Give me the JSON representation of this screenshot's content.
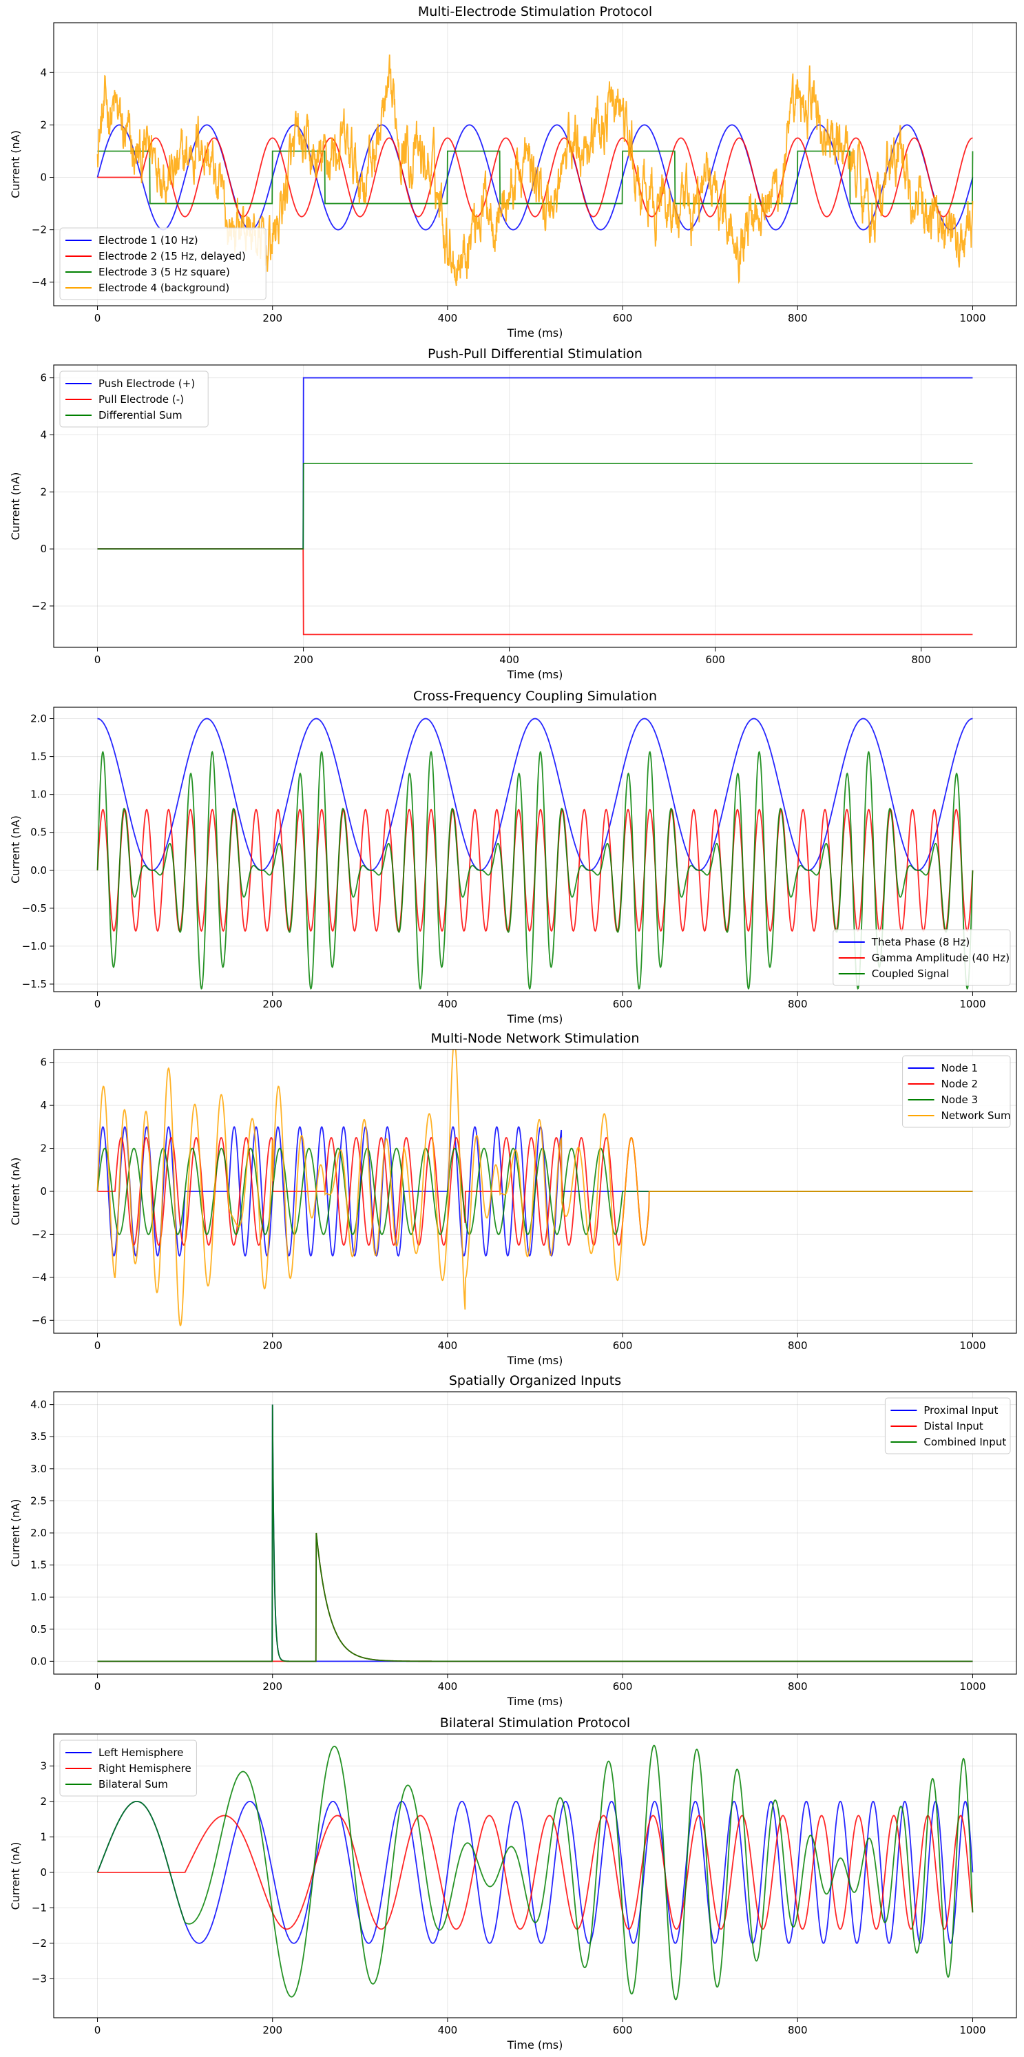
{
  "chart_data": [
    {
      "type": "line",
      "title": "Multi-Electrode Stimulation Protocol",
      "xlabel": "Time (ms)",
      "ylabel": "Current (nA)",
      "xlim": [
        -50,
        1050
      ],
      "ylim": [
        -4.9,
        5.9
      ],
      "xticks": [
        0,
        200,
        400,
        600,
        800,
        1000
      ],
      "yticks": [
        -4,
        -2,
        0,
        2,
        4
      ],
      "grid": true,
      "legend": "lower-left",
      "series": [
        {
          "name": "Electrode 1 (10 Hz)",
          "color": "#0000ff",
          "fn": "sine",
          "amplitude": 2,
          "freq_hz": 10,
          "start": 0,
          "end": 1000
        },
        {
          "name": "Electrode 2 (15 Hz, delayed)",
          "color": "#ff0000",
          "fn": "sine",
          "amplitude": 1.5,
          "freq_hz": 15,
          "start": 50,
          "end": 1000
        },
        {
          "name": "Electrode 3 (5 Hz square)",
          "color": "#008000",
          "fn": "square",
          "amplitude": 1,
          "freq_hz": 5,
          "start": 0,
          "end": 1000
        },
        {
          "name": "Electrode 4 (background)",
          "color": "#ffa500",
          "fn": "noise",
          "amplitude": 1.4,
          "start": 0,
          "end": 1000
        }
      ]
    },
    {
      "type": "line",
      "title": "Push-Pull Differential Stimulation",
      "xlabel": "Time (ms)",
      "ylabel": "Current (nA)",
      "xlim": [
        -42.5,
        892.5
      ],
      "ylim": [
        -3.45,
        6.45
      ],
      "xticks": [
        0,
        200,
        400,
        600,
        800
      ],
      "yticks": [
        -2,
        0,
        2,
        4,
        6
      ],
      "grid": true,
      "legend": "upper-left",
      "series": [
        {
          "name": "Push Electrode (+)",
          "color": "#0000ff",
          "fn": "step",
          "before": 0,
          "after": 6,
          "step_at": 200,
          "start": 0,
          "end": 850
        },
        {
          "name": "Pull Electrode (-)",
          "color": "#ff0000",
          "fn": "step",
          "before": 0,
          "after": -3,
          "step_at": 200,
          "start": 0,
          "end": 850
        },
        {
          "name": "Differential Sum",
          "color": "#008000",
          "fn": "step",
          "before": 0,
          "after": 3,
          "step_at": 200,
          "start": 0,
          "end": 850
        }
      ]
    },
    {
      "type": "line",
      "title": "Cross-Frequency Coupling Simulation",
      "xlabel": "Time (ms)",
      "ylabel": "Current (nA)",
      "xlim": [
        -50,
        1050
      ],
      "ylim": [
        -1.6,
        2.15
      ],
      "xticks": [
        0,
        200,
        400,
        600,
        800,
        1000
      ],
      "yticks": [
        -1.5,
        -1.0,
        -0.5,
        0.0,
        0.5,
        1.0,
        1.5,
        2.0
      ],
      "grid": true,
      "legend": "lower-right",
      "series": [
        {
          "name": "Theta Phase (8 Hz)",
          "color": "#0000ff",
          "fn": "theta",
          "freq_hz": 8
        },
        {
          "name": "Gamma Amplitude (40 Hz)",
          "color": "#ff0000",
          "fn": "gamma",
          "freq_hz": 40,
          "amplitude": 0.8
        },
        {
          "name": "Coupled Signal",
          "color": "#008000",
          "fn": "coupled"
        }
      ]
    },
    {
      "type": "line",
      "title": "Multi-Node Network Stimulation",
      "xlabel": "Time (ms)",
      "ylabel": "Current (nA)",
      "xlim": [
        -50,
        1050
      ],
      "ylim": [
        -6.6,
        6.6
      ],
      "xticks": [
        0,
        200,
        400,
        600,
        800,
        1000
      ],
      "yticks": [
        -6,
        -4,
        -2,
        0,
        2,
        4,
        6
      ],
      "grid": true,
      "legend": "upper-right",
      "series": [
        {
          "name": "Node 1",
          "color": "#0000ff",
          "fn": "burst",
          "amplitude": 3,
          "freq_hz": 40,
          "bursts": [
            [
              0,
              100
            ],
            [
              150,
              350
            ],
            [
              400,
              530
            ]
          ],
          "end": 1000
        },
        {
          "name": "Node 2",
          "color": "#ff0000",
          "fn": "burst",
          "amplitude": 2.5,
          "freq_hz": 35,
          "bursts": [
            [
              20,
              200
            ],
            [
              260,
              420
            ],
            [
              460,
              630
            ]
          ],
          "end": 1000
        },
        {
          "name": "Node 3",
          "color": "#008000",
          "fn": "burst",
          "amplitude": 2,
          "freq_hz": 30,
          "bursts": [
            [
              0,
              600
            ]
          ],
          "end": 1000
        },
        {
          "name": "Network Sum",
          "color": "#ffa500",
          "fn": "sum"
        }
      ]
    },
    {
      "type": "line",
      "title": "Spatially Organized Inputs",
      "xlabel": "Time (ms)",
      "ylabel": "Current (nA)",
      "xlim": [
        -50,
        1050
      ],
      "ylim": [
        -0.2,
        4.2
      ],
      "xticks": [
        0,
        200,
        400,
        600,
        800,
        1000
      ],
      "yticks": [
        0.0,
        0.5,
        1.0,
        1.5,
        2.0,
        2.5,
        3.0,
        3.5,
        4.0
      ],
      "grid": true,
      "legend": "upper-right",
      "series": [
        {
          "name": "Proximal Input",
          "color": "#0000ff",
          "fn": "pulse",
          "onset": 200,
          "amplitude": 4,
          "tau_ms": 2
        },
        {
          "name": "Distal Input",
          "color": "#ff0000",
          "fn": "pulse",
          "onset": 250,
          "amplitude": 2,
          "tau_ms": 15
        },
        {
          "name": "Combined Input",
          "color": "#008000",
          "fn": "sum"
        }
      ]
    },
    {
      "type": "line",
      "title": "Bilateral Stimulation Protocol",
      "xlabel": "Time (ms)",
      "ylabel": "Current (nA)",
      "xlim": [
        -50,
        1050
      ],
      "ylim": [
        -4.1,
        3.9
      ],
      "xticks": [
        0,
        200,
        400,
        600,
        800,
        1000
      ],
      "yticks": [
        -3,
        -2,
        -1,
        0,
        1,
        2,
        3
      ],
      "grid": true,
      "legend": "upper-left",
      "series": [
        {
          "name": "Left Hemisphere",
          "color": "#0000ff",
          "fn": "chirp",
          "amplitude": 2,
          "f0_hz": 5,
          "f1_hz": 30,
          "start": 0
        },
        {
          "name": "Right Hemisphere",
          "color": "#ff0000",
          "fn": "chirp",
          "amplitude": 1.6,
          "f0_hz": 5,
          "f1_hz": 30,
          "start": 100
        },
        {
          "name": "Bilateral Sum",
          "color": "#008000",
          "fn": "sum"
        }
      ]
    }
  ]
}
